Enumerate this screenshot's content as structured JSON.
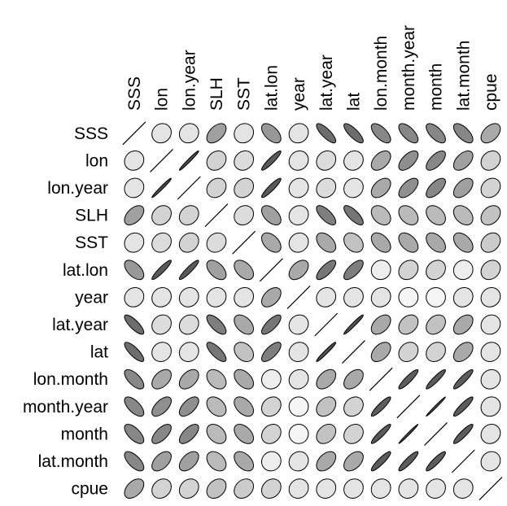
{
  "chart_data": {
    "type": "heatmap",
    "variables": [
      "SSS",
      "lon",
      "lon.year",
      "SLH",
      "SST",
      "lat.lon",
      "year",
      "lat.year",
      "lat",
      "lon.month",
      "month.year",
      "month",
      "lat.month",
      "cpue"
    ],
    "column_labels": [
      "SSS",
      "lon",
      "lon.year",
      "SLH",
      "SST",
      "lat.lon",
      "year",
      "lat.year",
      "lat",
      "lon.month",
      "month.year",
      "month",
      "lat.month",
      "cpue"
    ],
    "row_labels": [
      "SSS",
      "lon",
      "lon.year",
      "SLH",
      "SST",
      "lat.lon",
      "year",
      "lat.year",
      "lat",
      "lon.month",
      "month.year",
      "month",
      "lat.month",
      "cpue"
    ],
    "glyph": "ellipse",
    "correlation_matrix": [
      [
        1.0,
        0.1,
        0.1,
        0.5,
        0.1,
        -0.55,
        0.1,
        -0.8,
        -0.8,
        -0.65,
        -0.65,
        -0.65,
        -0.65,
        0.45
      ],
      [
        0.1,
        1.0,
        0.98,
        0.2,
        0.15,
        0.92,
        0.1,
        0.15,
        0.1,
        0.45,
        0.6,
        0.65,
        0.5,
        0.2
      ],
      [
        0.1,
        0.98,
        1.0,
        0.2,
        0.2,
        0.92,
        0.1,
        0.15,
        0.1,
        0.45,
        0.6,
        0.65,
        0.5,
        0.2
      ],
      [
        0.5,
        0.2,
        0.2,
        1.0,
        0.15,
        -0.5,
        0.1,
        -0.7,
        -0.75,
        -0.35,
        -0.35,
        -0.35,
        -0.35,
        0.3
      ],
      [
        0.1,
        0.15,
        0.2,
        0.15,
        1.0,
        -0.45,
        0.1,
        -0.45,
        -0.3,
        -0.45,
        -0.45,
        -0.45,
        -0.45,
        0.25
      ],
      [
        -0.55,
        0.92,
        0.92,
        -0.5,
        -0.45,
        1.0,
        0.45,
        0.75,
        0.7,
        0.05,
        0.2,
        0.2,
        0.05,
        0.2
      ],
      [
        0.1,
        0.1,
        0.1,
        0.1,
        0.1,
        0.45,
        1.0,
        0.1,
        0.1,
        0.1,
        0.0,
        0.0,
        0.1,
        0.1
      ],
      [
        -0.8,
        0.15,
        0.15,
        -0.7,
        -0.45,
        0.75,
        0.1,
        1.0,
        0.97,
        0.45,
        0.3,
        0.3,
        0.45,
        0.1
      ],
      [
        -0.8,
        0.1,
        0.1,
        -0.75,
        -0.3,
        0.7,
        0.1,
        0.97,
        1.0,
        0.45,
        0.2,
        0.2,
        0.45,
        0.1
      ],
      [
        -0.65,
        0.45,
        0.45,
        -0.35,
        -0.45,
        0.05,
        0.1,
        0.45,
        0.45,
        1.0,
        0.9,
        0.92,
        0.9,
        0.1
      ],
      [
        -0.65,
        0.6,
        0.6,
        -0.35,
        -0.45,
        0.2,
        0.0,
        0.3,
        0.2,
        0.9,
        1.0,
        0.99,
        0.9,
        0.1
      ],
      [
        -0.65,
        0.65,
        0.65,
        -0.35,
        -0.45,
        0.2,
        0.0,
        0.3,
        0.2,
        0.92,
        0.99,
        1.0,
        0.9,
        0.1
      ],
      [
        -0.65,
        0.5,
        0.5,
        -0.35,
        -0.45,
        0.05,
        0.1,
        0.45,
        0.45,
        0.9,
        0.9,
        0.9,
        1.0,
        0.1
      ],
      [
        0.45,
        0.2,
        0.2,
        0.3,
        0.25,
        0.2,
        0.1,
        0.1,
        0.1,
        0.1,
        0.1,
        0.1,
        0.1,
        1.0
      ]
    ],
    "shading": "darker fill = stronger correlation; ellipse tilts up-right for positive, down-right for negative"
  }
}
